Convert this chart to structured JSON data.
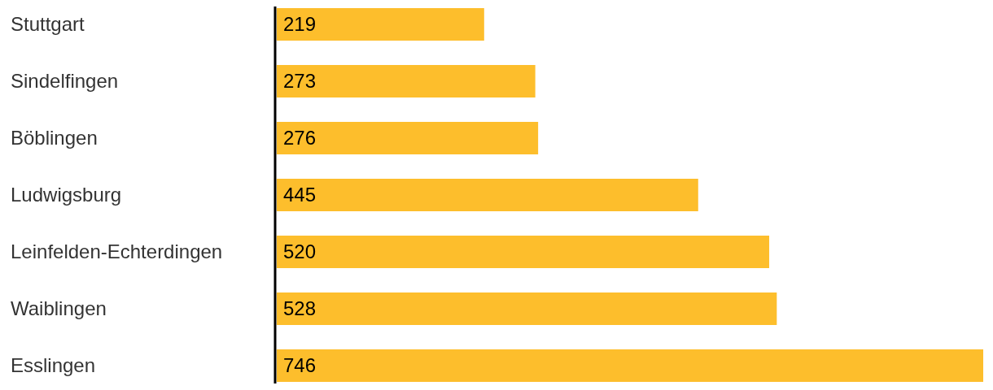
{
  "chart_data": {
    "type": "bar",
    "orientation": "horizontal",
    "categories": [
      "Stuttgart",
      "Sindelfingen",
      "Böblingen",
      "Ludwigsburg",
      "Leinfelden-Echterdingen",
      "Waiblingen",
      "Esslingen"
    ],
    "values": [
      219,
      273,
      276,
      445,
      520,
      528,
      746
    ],
    "color": "#fdbe2c",
    "data_labels": true
  }
}
